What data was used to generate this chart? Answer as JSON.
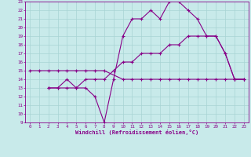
{
  "line1_x": [
    0,
    1,
    2,
    3,
    4,
    5,
    6,
    7,
    8,
    10,
    11,
    12,
    13,
    14,
    15,
    16,
    17,
    18,
    19,
    20,
    21,
    22,
    23
  ],
  "line1_y": [
    15,
    15,
    15,
    15,
    15,
    15,
    15,
    15,
    15,
    14,
    14,
    14,
    14,
    14,
    14,
    14,
    14,
    14,
    14,
    14,
    14,
    14,
    14
  ],
  "line2_x": [
    2,
    3,
    4,
    5,
    6,
    7,
    8,
    9,
    10,
    11,
    12,
    13,
    14,
    15,
    16,
    17,
    18,
    19,
    20,
    21,
    22,
    23
  ],
  "line2_y": [
    13,
    13,
    14,
    13,
    13,
    12,
    9,
    14,
    19,
    21,
    21,
    22,
    21,
    23,
    23,
    22,
    21,
    19,
    19,
    17,
    14,
    14
  ],
  "line3_x": [
    2,
    3,
    4,
    5,
    6,
    7,
    8,
    9,
    10,
    11,
    12,
    13,
    14,
    15,
    16,
    17,
    18,
    19,
    20,
    21,
    22,
    23
  ],
  "line3_y": [
    13,
    13,
    13,
    13,
    14,
    14,
    14,
    15,
    16,
    16,
    17,
    17,
    17,
    18,
    18,
    19,
    19,
    19,
    19,
    17,
    14,
    14
  ],
  "color": "#880088",
  "bg_color": "#c8eaea",
  "grid_color": "#a8d4d4",
  "xlabel": "Windchill (Refroidissement éolien,°C)",
  "xlim": [
    -0.5,
    23.5
  ],
  "ylim": [
    9,
    23
  ],
  "xticks": [
    0,
    1,
    2,
    3,
    4,
    5,
    6,
    7,
    8,
    9,
    10,
    11,
    12,
    13,
    14,
    15,
    16,
    17,
    18,
    19,
    20,
    21,
    22,
    23
  ],
  "yticks": [
    9,
    10,
    11,
    12,
    13,
    14,
    15,
    16,
    17,
    18,
    19,
    20,
    21,
    22,
    23
  ],
  "marker": "+",
  "markersize": 3,
  "linewidth": 0.8,
  "label_fontsize": 5.0,
  "tick_fontsize": 4.2
}
